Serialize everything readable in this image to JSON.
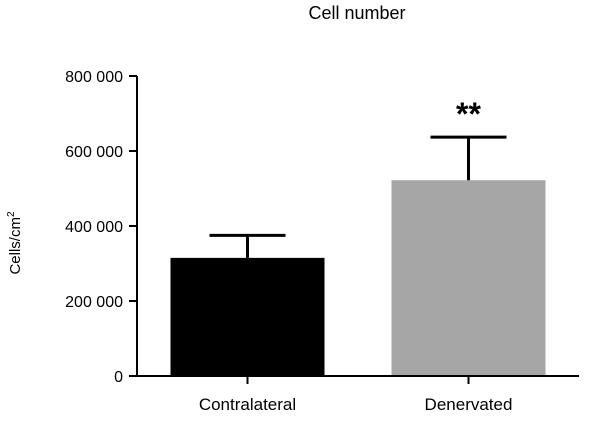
{
  "chart_data": {
    "type": "bar",
    "title": "Cell number",
    "ylabel": "Cells/cm",
    "ylabel_superscript": "2",
    "xlabel": "",
    "categories": [
      "Contralateral",
      "Denervated"
    ],
    "values": [
      315000,
      522000
    ],
    "error_upper": [
      375000,
      637000
    ],
    "bar_colors": [
      "#000000",
      "#a6a6a6"
    ],
    "annotations": [
      {
        "category": "Denervated",
        "text": "**"
      }
    ],
    "ylim": [
      0,
      800000
    ],
    "yticks": [
      0,
      200000,
      400000,
      600000,
      800000
    ],
    "ytick_labels": [
      "0",
      "200 000",
      "400 000",
      "600 000",
      "800 000"
    ],
    "grid": false,
    "legend": "none"
  }
}
